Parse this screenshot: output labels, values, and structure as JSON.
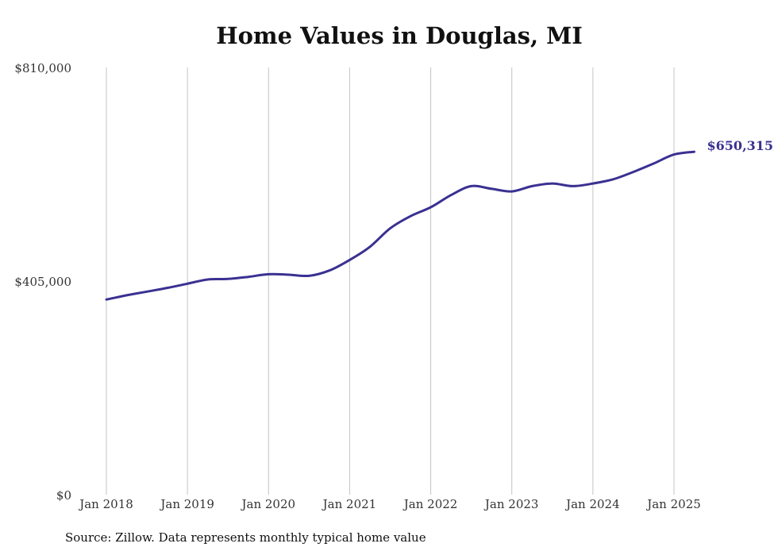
{
  "chart_data": {
    "type": "line",
    "title": "Home Values in Douglas, MI",
    "source": "Source: Zillow. Data represents monthly typical home value",
    "xlabel": "",
    "ylabel": "",
    "ylim": [
      0,
      810000
    ],
    "yticks": [
      {
        "value": 0,
        "label": "$0"
      },
      {
        "value": 405000,
        "label": "$405,000"
      },
      {
        "value": 810000,
        "label": "$810,000"
      }
    ],
    "xticks": [
      "Jan 2018",
      "Jan 2019",
      "Jan 2020",
      "Jan 2021",
      "Jan 2022",
      "Jan 2023",
      "Jan 2024",
      "Jan 2025"
    ],
    "grid": "vertical",
    "line_color": "#3a3191",
    "end_label": "$650,315",
    "series": [
      {
        "x": [
          "2018-01",
          "2018-04",
          "2018-07",
          "2018-10",
          "2019-01",
          "2019-04",
          "2019-07",
          "2019-10",
          "2020-01",
          "2020-04",
          "2020-07",
          "2020-10",
          "2021-01",
          "2021-04",
          "2021-07",
          "2021-10",
          "2022-01",
          "2022-04",
          "2022-07",
          "2022-10",
          "2023-01",
          "2023-04",
          "2023-07",
          "2023-10",
          "2024-01",
          "2024-04",
          "2024-07",
          "2024-10",
          "2025-01",
          "2025-04"
        ],
        "values": [
          370000,
          378000,
          385000,
          392000,
          400000,
          408000,
          409000,
          413000,
          418000,
          417000,
          415000,
          425000,
          445000,
          470000,
          505000,
          528000,
          545000,
          568000,
          585000,
          580000,
          575000,
          585000,
          590000,
          585000,
          590000,
          598000,
          612000,
          628000,
          645000,
          650315
        ]
      }
    ]
  }
}
